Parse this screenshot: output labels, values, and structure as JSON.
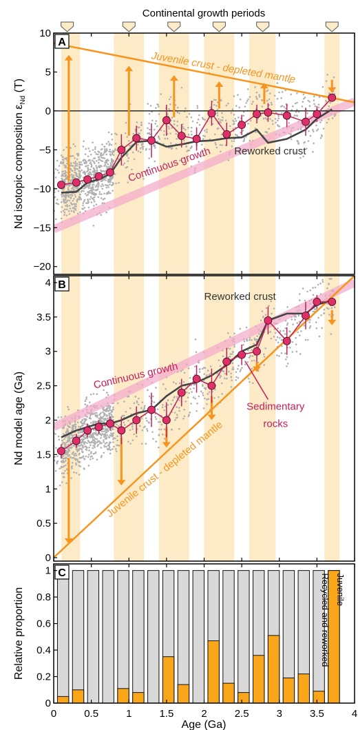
{
  "figure_title": "Continental growth periods",
  "shared_x": {
    "label": "Age (Ga)",
    "lim": [
      0,
      4
    ],
    "ticks": [
      "0",
      "0.5",
      "1",
      "1.5",
      "2",
      "2.5",
      "3",
      "3.5",
      "4"
    ]
  },
  "growth_periods": [
    [
      0.1,
      0.35
    ],
    [
      0.8,
      1.2
    ],
    [
      1.4,
      1.8
    ],
    [
      2.0,
      2.4
    ],
    [
      2.6,
      2.95
    ],
    [
      3.6,
      3.8
    ]
  ],
  "growth_period_markers": [
    0.18,
    1.0,
    1.6,
    2.2,
    2.78,
    3.7
  ],
  "colors": {
    "period_band": "#fdebc8",
    "orange": "#f7941d",
    "marker_fill": "#e0306a",
    "marker_line": "#c41f5a",
    "reworked_line": "#444444",
    "continuous_band": "#f2a8c9",
    "scatter": "#b0b0b0",
    "bar_grey": "#d9d9d9",
    "bar_orange": "#f9a61a"
  },
  "chart_data": [
    {
      "panel": "A",
      "type": "line",
      "ylabel": "Nd isotopic composition ε",
      "ylabel_sub": "Nd",
      "ylabel_tail": " (T)",
      "ylim": [
        -21,
        10
      ],
      "yticks": [
        "10",
        "5",
        "0",
        "-5",
        "-10",
        "-15",
        "-20"
      ],
      "sedimentary_rocks": {
        "x": [
          0.1,
          0.3,
          0.45,
          0.6,
          0.75,
          0.9,
          1.1,
          1.3,
          1.5,
          1.7,
          1.9,
          2.1,
          2.3,
          2.5,
          2.7,
          2.85,
          3.1,
          3.35,
          3.5,
          3.7
        ],
        "y": [
          -9.5,
          -9.2,
          -8.8,
          -8.4,
          -7.9,
          -5.0,
          -3.5,
          -3.8,
          -1.2,
          -3.2,
          -3.6,
          -0.3,
          -3.0,
          -1.8,
          -0.4,
          -0.2,
          -0.6,
          -1.4,
          -0.4,
          1.7
        ],
        "err": [
          0.5,
          0.5,
          0.5,
          0.5,
          0.5,
          2.0,
          1.6,
          2.2,
          2.0,
          1.5,
          1.5,
          1.6,
          1.5,
          1.3,
          1.2,
          1.2,
          1.5,
          1.8,
          1.0,
          0.5
        ]
      },
      "reworked_crust": {
        "name": "Reworked crust",
        "x": [
          0.1,
          0.3,
          0.45,
          0.6,
          0.75,
          0.9,
          1.1,
          1.3,
          1.5,
          1.7,
          1.9,
          2.1,
          2.3,
          2.5,
          2.7,
          2.85,
          3.1,
          3.35,
          3.5,
          3.7
        ],
        "y": [
          -10.5,
          -10.4,
          -9.2,
          -8.8,
          -8.1,
          -6.0,
          -4.0,
          -3.8,
          -4.6,
          -4.3,
          -3.9,
          -3.8,
          -3.5,
          -3.4,
          -2.4,
          -4.1,
          -3.6,
          -2.4,
          -1.0,
          0.2
        ]
      },
      "continuous_growth": {
        "name": "Continuous growth",
        "x": [
          0,
          4
        ],
        "y": [
          -15.2,
          1.2
        ]
      },
      "depleted_mantle": {
        "name": "Juvenile crust - depleted mantle",
        "x": [
          0,
          4
        ],
        "y": [
          8.7,
          1.1
        ]
      },
      "zero_line": 0,
      "arrows": [
        {
          "x": 0.2,
          "from": -9.0,
          "to": 7.2
        },
        {
          "x": 1.0,
          "from": -3.2,
          "to": 5.8
        },
        {
          "x": 1.6,
          "from": -0.8,
          "to": 4.6
        },
        {
          "x": 2.2,
          "from": 0.3,
          "to": 3.8
        },
        {
          "x": 2.8,
          "from": 0.9,
          "to": 3.6
        },
        {
          "x": 3.7,
          "from": 4.0,
          "to": 2.3
        }
      ]
    },
    {
      "panel": "B",
      "type": "line",
      "ylabel": "Nd model age (Ga)",
      "ylim": [
        -0.05,
        4.1
      ],
      "yticks": [
        "4",
        "3.5",
        "3",
        "2.5",
        "2",
        "1.5",
        "1",
        "0.5",
        "0"
      ],
      "sedimentary_rocks": {
        "name": "Sedimentary rocks",
        "x": [
          0.1,
          0.3,
          0.45,
          0.6,
          0.75,
          0.9,
          1.1,
          1.3,
          1.5,
          1.7,
          1.9,
          2.1,
          2.3,
          2.5,
          2.7,
          2.85,
          3.1,
          3.35,
          3.5,
          3.7
        ],
        "y": [
          1.55,
          1.7,
          1.85,
          1.9,
          1.95,
          1.85,
          2.0,
          2.15,
          2.0,
          2.4,
          2.6,
          2.5,
          2.85,
          2.95,
          3.0,
          3.45,
          3.15,
          3.52,
          3.72,
          3.72
        ],
        "err": [
          0.1,
          0.1,
          0.1,
          0.1,
          0.1,
          0.2,
          0.2,
          0.25,
          0.25,
          0.2,
          0.2,
          0.25,
          0.2,
          0.15,
          0.15,
          0.2,
          0.2,
          0.2,
          0.1,
          0.05
        ]
      },
      "reworked_crust": {
        "name": "Reworked crust",
        "x": [
          0.1,
          0.3,
          0.45,
          0.6,
          0.75,
          0.9,
          1.1,
          1.3,
          1.5,
          1.7,
          1.9,
          2.1,
          2.3,
          2.5,
          2.7,
          2.85,
          3.1,
          3.35,
          3.5,
          3.7
        ],
        "y": [
          1.75,
          1.85,
          1.9,
          1.95,
          1.95,
          2.0,
          2.1,
          2.15,
          2.35,
          2.5,
          2.55,
          2.65,
          2.8,
          3.0,
          3.1,
          3.45,
          3.55,
          3.55,
          3.68,
          3.74
        ]
      },
      "continuous_growth": {
        "name": "Continuous growth",
        "x": [
          0,
          4
        ],
        "y": [
          1.9,
          4.0
        ]
      },
      "depleted_mantle": {
        "name": "Juvenile crust - depleted mantle",
        "x": [
          0,
          4
        ],
        "y": [
          0.0,
          4.1
        ]
      },
      "arrows": [
        {
          "x": 0.2,
          "from": 1.45,
          "to": 0.2
        },
        {
          "x": 0.9,
          "from": 1.75,
          "to": 1.05
        },
        {
          "x": 1.5,
          "from": 1.9,
          "to": 1.6
        },
        {
          "x": 2.1,
          "from": 2.35,
          "to": 2.0
        },
        {
          "x": 2.7,
          "from": 2.85,
          "to": 2.7
        },
        {
          "x": 3.7,
          "from": 3.6,
          "to": 3.38
        }
      ]
    },
    {
      "panel": "C",
      "type": "bar",
      "ylabel": "Relative proportion",
      "ylim": [
        0,
        1.05
      ],
      "yticks": [
        "1",
        "0.8",
        "0.6",
        "0.4",
        "0.2",
        "0"
      ],
      "series": [
        {
          "name": "Juvenile",
          "color": "#f9a61a"
        },
        {
          "name": "Recycled and reworked",
          "color": "#d9d9d9"
        }
      ],
      "bars": [
        {
          "x0": 0.05,
          "x1": 0.2,
          "juvenile": 0.05
        },
        {
          "x0": 0.25,
          "x1": 0.4,
          "juvenile": 0.1
        },
        {
          "x0": 0.45,
          "x1": 0.6,
          "juvenile": 0.0
        },
        {
          "x0": 0.65,
          "x1": 0.8,
          "juvenile": 0.0
        },
        {
          "x0": 0.85,
          "x1": 1.0,
          "juvenile": 0.11
        },
        {
          "x0": 1.05,
          "x1": 1.2,
          "juvenile": 0.08
        },
        {
          "x0": 1.25,
          "x1": 1.4,
          "juvenile": 0.0
        },
        {
          "x0": 1.45,
          "x1": 1.6,
          "juvenile": 0.35
        },
        {
          "x0": 1.65,
          "x1": 1.8,
          "juvenile": 0.14
        },
        {
          "x0": 1.85,
          "x1": 2.0,
          "juvenile": 0.0
        },
        {
          "x0": 2.05,
          "x1": 2.2,
          "juvenile": 0.47
        },
        {
          "x0": 2.25,
          "x1": 2.4,
          "juvenile": 0.15
        },
        {
          "x0": 2.45,
          "x1": 2.6,
          "juvenile": 0.08
        },
        {
          "x0": 2.65,
          "x1": 2.8,
          "juvenile": 0.36
        },
        {
          "x0": 2.85,
          "x1": 3.0,
          "juvenile": 0.51
        },
        {
          "x0": 3.05,
          "x1": 3.2,
          "juvenile": 0.19
        },
        {
          "x0": 3.25,
          "x1": 3.4,
          "juvenile": 0.22
        },
        {
          "x0": 3.45,
          "x1": 3.6,
          "juvenile": 0.09
        },
        {
          "x0": 3.65,
          "x1": 3.8,
          "juvenile": 1.0
        }
      ]
    }
  ]
}
